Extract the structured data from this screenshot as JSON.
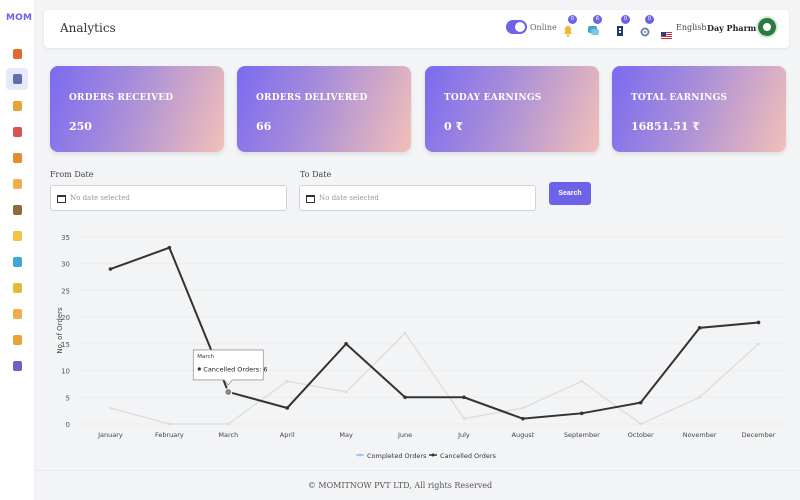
{
  "app": {
    "logo_text": "MOM"
  },
  "sidebar": {
    "icons": [
      "dashboard-gauge-icon",
      "analytics-icon",
      "orders-icon",
      "ticket-icon",
      "delivery-person-icon",
      "user-icon",
      "inventory-icon",
      "calendar-icon",
      "globe-icon",
      "shop-icon",
      "package-icon",
      "reports-icon",
      "support-icon"
    ]
  },
  "header": {
    "title": "Analytics",
    "online_label": "Online",
    "online_enabled": true,
    "notifications": [
      {
        "icon": "bell-icon",
        "count": "0"
      },
      {
        "icon": "chat-icon",
        "count": "6"
      },
      {
        "icon": "delivery-icon",
        "count": "0"
      },
      {
        "icon": "gear-icon",
        "count": "0"
      }
    ],
    "language": "English",
    "store_name": "Day Pharmacy"
  },
  "stats": [
    {
      "label": "ORDERS RECEIVED",
      "value": "250"
    },
    {
      "label": "ORDERS DELIVERED",
      "value": "66"
    },
    {
      "label": "TODAY EARNINGS",
      "value": "0 ₹"
    },
    {
      "label": "TOTAL EARNINGS",
      "value": "16851.51 ₹"
    }
  ],
  "filters": {
    "from_label": "From Date",
    "to_label": "To Date",
    "from_placeholder": "No date selected",
    "to_placeholder": "No date selected",
    "search_label": "Search"
  },
  "chart_data": {
    "type": "line",
    "ylabel": "No. of Orders",
    "ylim": [
      0,
      35
    ],
    "yticks": [
      0,
      5,
      10,
      15,
      20,
      25,
      30,
      35
    ],
    "categories": [
      "January",
      "February",
      "March",
      "April",
      "May",
      "June",
      "July",
      "August",
      "September",
      "October",
      "November",
      "December"
    ],
    "series": [
      {
        "name": "Completed Orders",
        "color": "#dcdcdc",
        "values": [
          3,
          0,
          0,
          8,
          6,
          17,
          1,
          3,
          8,
          0,
          5,
          15
        ]
      },
      {
        "name": "Cancelled Orders",
        "color": "#333333",
        "values": [
          29,
          33,
          6,
          3,
          15,
          5,
          5,
          1,
          2,
          4,
          18,
          19
        ]
      }
    ],
    "tooltip": {
      "category": "March",
      "label": "Cancelled Orders: 6"
    },
    "grid": true,
    "legend_position": "bottom"
  },
  "footer": {
    "text": "© MOMITNOW PVT LTD, All rights Reserved"
  }
}
